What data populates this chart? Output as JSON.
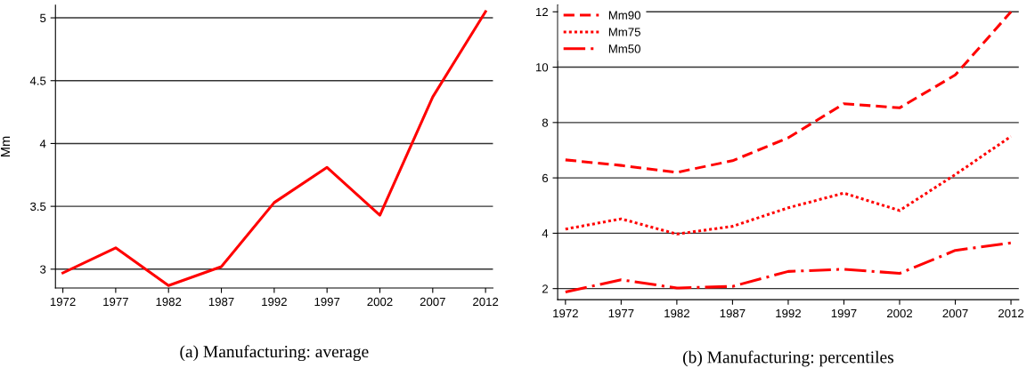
{
  "chart_data": [
    {
      "type": "line",
      "title": "(a) Manufacturing: average",
      "ylabel": "Mm",
      "x": [
        1972,
        1977,
        1982,
        1987,
        1992,
        1997,
        2002,
        2007,
        2012
      ],
      "series": [
        {
          "color": "#ff0000",
          "line_style": "solid",
          "values": [
            2.97,
            3.17,
            2.87,
            3.02,
            3.53,
            3.81,
            3.43,
            4.37,
            5.05
          ]
        }
      ],
      "xlim": [
        1971.3,
        2012.7
      ],
      "xticks": [
        1972,
        1977,
        1982,
        1987,
        1992,
        1997,
        2002,
        2007,
        2012
      ],
      "ylim": [
        2.85,
        5.1
      ],
      "yticks": [
        3,
        3.5,
        4,
        4.5,
        5
      ],
      "grid": "y",
      "legend": false
    },
    {
      "type": "line",
      "title": "(b) Manufacturing: percentiles",
      "x": [
        1972,
        1977,
        1982,
        1987,
        1992,
        1997,
        2002,
        2007,
        2012
      ],
      "series": [
        {
          "name": "Mm90",
          "color": "#ff0000",
          "line_style": "dashed",
          "values": [
            6.65,
            6.45,
            6.2,
            6.62,
            7.45,
            8.68,
            8.53,
            9.72,
            12.0
          ]
        },
        {
          "name": "Mm75",
          "color": "#ff0000",
          "line_style": "dotted",
          "values": [
            4.15,
            4.52,
            3.97,
            4.25,
            4.92,
            5.45,
            4.82,
            6.12,
            7.5
          ]
        },
        {
          "name": "Mm50",
          "color": "#ff0000",
          "line_style": "dashdot",
          "values": [
            1.88,
            2.32,
            2.02,
            2.08,
            2.62,
            2.7,
            2.55,
            3.38,
            3.65
          ]
        }
      ],
      "xlim": [
        1971.3,
        2012.7
      ],
      "xticks": [
        1972,
        1977,
        1982,
        1987,
        1992,
        1997,
        2002,
        2007,
        2012
      ],
      "ylim": [
        1.6,
        12.25
      ],
      "yticks": [
        2,
        4,
        6,
        8,
        10,
        12
      ],
      "grid": "y",
      "legend": "top left"
    }
  ]
}
